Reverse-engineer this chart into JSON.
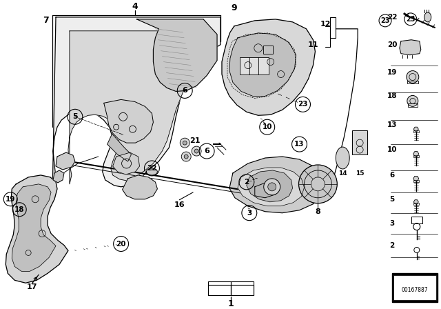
{
  "bg_color": "#ffffff",
  "line_color": "#000000",
  "fig_width": 6.4,
  "fig_height": 4.48,
  "dpi": 100,
  "diagram_id": "00167887"
}
